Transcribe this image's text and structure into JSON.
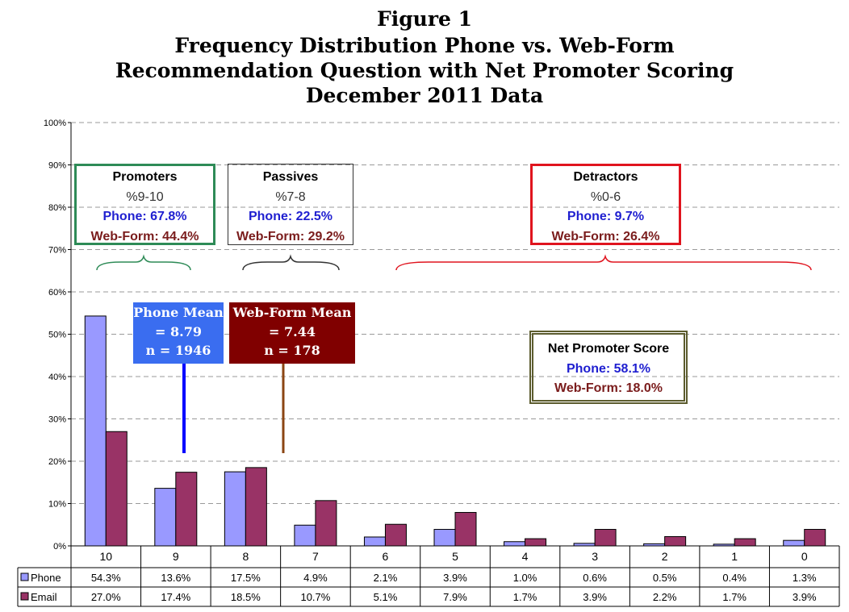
{
  "figure_label": "Figure 1",
  "title_lines": [
    "Frequency Distribution Phone vs. Web-Form",
    "Recommendation Question with Net Promoter Scoring",
    "December 2011 Data"
  ],
  "colors": {
    "phone": "#9999ff",
    "email": "#993366",
    "promoters": "#2e8b57",
    "passives": "#333333",
    "detractors": "#e0141e",
    "nps": "#5c5c2e",
    "phone_mean": "#3a6df0",
    "webform_mean": "#800000",
    "phone_line": "#0000ff",
    "webform_line": "#8b4513"
  },
  "promoters": {
    "label": "Promoters",
    "range": "%9-10",
    "phone": "Phone: 67.8%",
    "webform": "Web-Form: 44.4%"
  },
  "passives": {
    "label": "Passives",
    "range": "%7-8",
    "phone": "Phone: 22.5%",
    "webform": "Web-Form: 29.2%"
  },
  "detractors": {
    "label": "Detractors",
    "range": "%0-6",
    "phone": "Phone: 9.7%",
    "webform": "Web-Form: 26.4%"
  },
  "nps": {
    "label": "Net Promoter Score",
    "phone": "Phone: 58.1%",
    "webform": "Web-Form: 18.0%"
  },
  "phone_mean": {
    "line1": "Phone Mean",
    "line2": "= 8.79",
    "line3": "n = 1946"
  },
  "webform_mean": {
    "line1": "Web-Form Mean",
    "line2": "= 7.44",
    "line3": "n = 178"
  },
  "chart_data": {
    "type": "bar",
    "categories": [
      "10",
      "9",
      "8",
      "7",
      "6",
      "5",
      "4",
      "3",
      "2",
      "1",
      "0"
    ],
    "series": [
      {
        "name": "Phone",
        "values": [
          54.3,
          13.6,
          17.5,
          4.9,
          2.1,
          3.9,
          1.0,
          0.6,
          0.5,
          0.4,
          1.3
        ],
        "labels": [
          "54.3%",
          "13.6%",
          "17.5%",
          "4.9%",
          "2.1%",
          "3.9%",
          "1.0%",
          "0.6%",
          "0.5%",
          "0.4%",
          "1.3%"
        ]
      },
      {
        "name": "Email",
        "values": [
          27.0,
          17.4,
          18.5,
          10.7,
          5.1,
          7.9,
          1.7,
          3.9,
          2.2,
          1.7,
          3.9
        ],
        "labels": [
          "27.0%",
          "17.4%",
          "18.5%",
          "10.7%",
          "5.1%",
          "7.9%",
          "1.7%",
          "3.9%",
          "2.2%",
          "1.7%",
          "3.9%"
        ]
      }
    ],
    "ylim": [
      0,
      100
    ],
    "yticks": [
      "0%",
      "10%",
      "20%",
      "30%",
      "40%",
      "50%",
      "60%",
      "70%",
      "80%",
      "90%",
      "100%"
    ],
    "grid": true,
    "legend": "data-table"
  }
}
